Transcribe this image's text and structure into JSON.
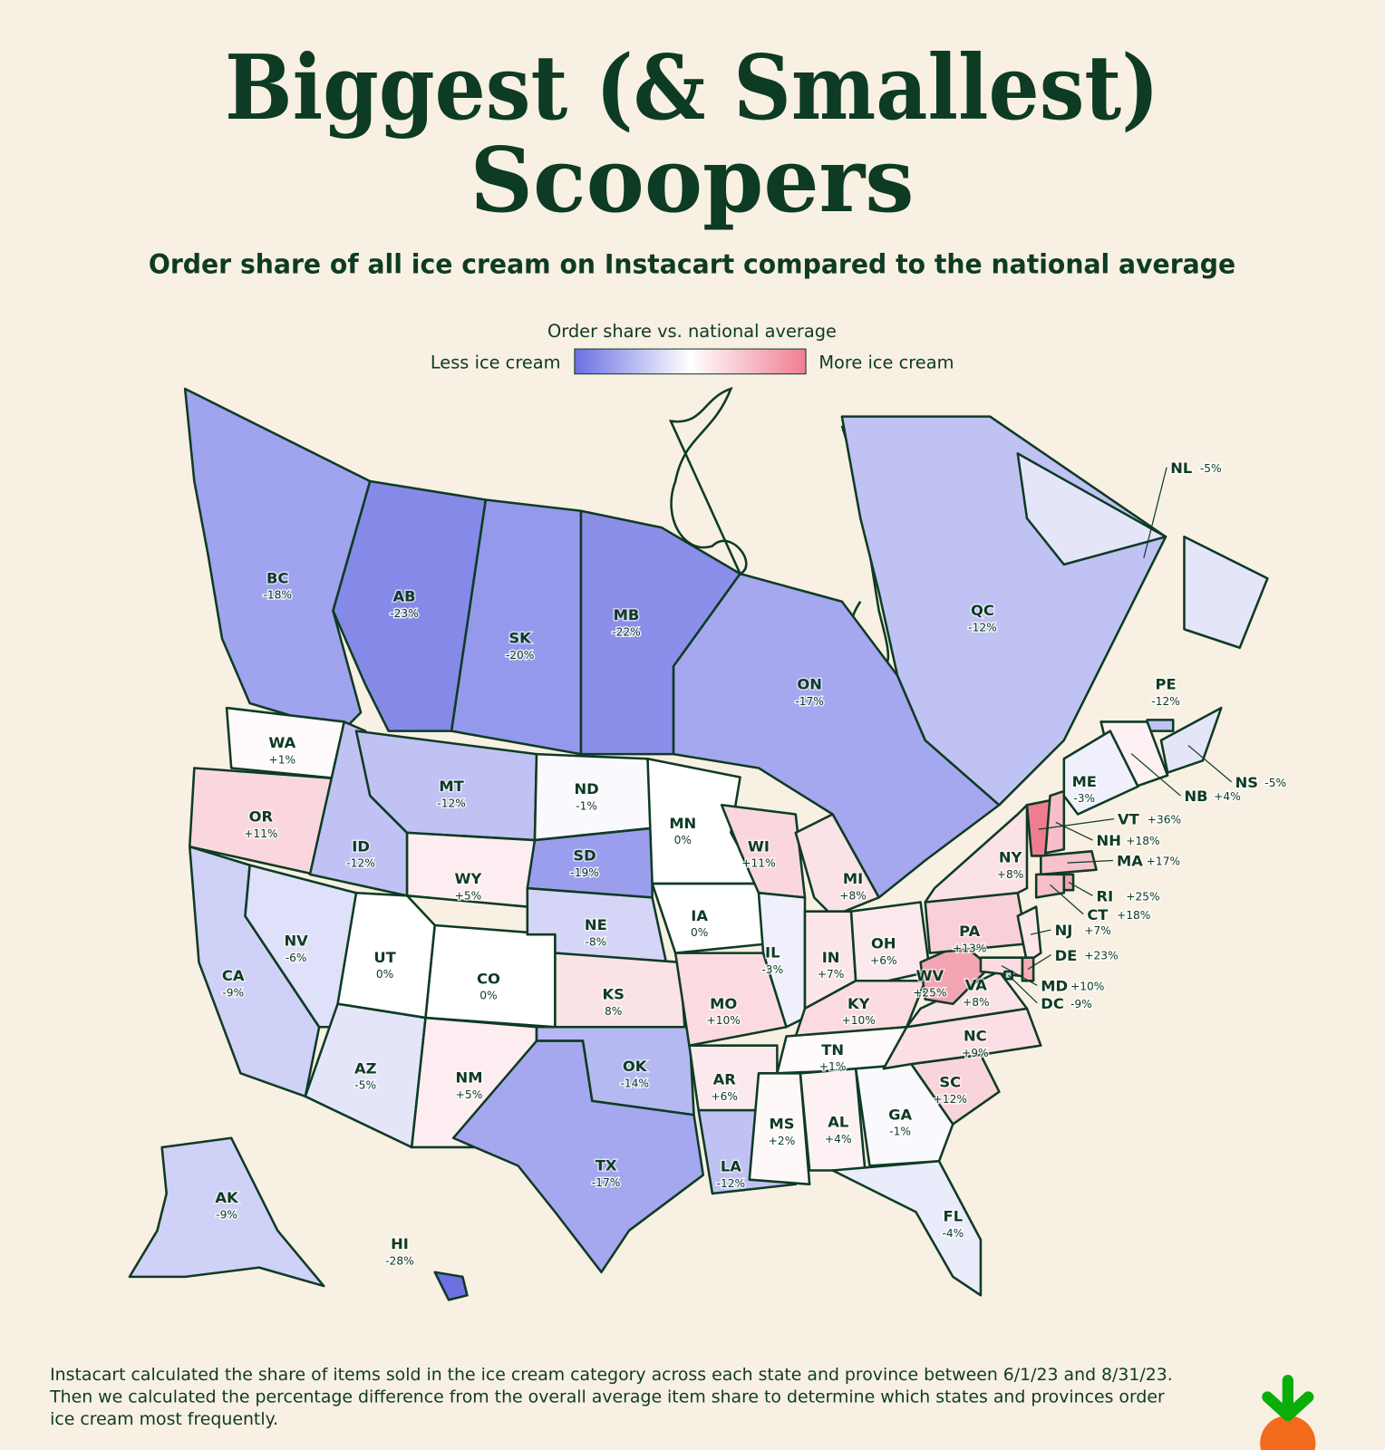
{
  "header": {
    "title": [
      "Biggest (& Smallest)",
      "Scoopers"
    ],
    "subtitle": "Order share of all ice cream on Instacart compared to the national average"
  },
  "legend": {
    "title": "Order share vs. national average",
    "low_label": "Less ice cream",
    "high_label": "More ice cream"
  },
  "regions": [
    {
      "code": "BC",
      "label": "-18%",
      "value": -18
    },
    {
      "code": "AB",
      "label": "-23%",
      "value": -23
    },
    {
      "code": "SK",
      "label": "-20%",
      "value": -20
    },
    {
      "code": "MB",
      "label": "-22%",
      "value": -22
    },
    {
      "code": "ON",
      "label": "-17%",
      "value": -17
    },
    {
      "code": "QC",
      "label": "-12%",
      "value": -12
    },
    {
      "code": "NL",
      "label": "-5%",
      "value": -5
    },
    {
      "code": "PE",
      "label": "-12%",
      "value": -12
    },
    {
      "code": "NS",
      "label": "-5%",
      "value": -5
    },
    {
      "code": "NB",
      "label": "+4%",
      "value": 4
    },
    {
      "code": "WA",
      "label": "+1%",
      "value": 1
    },
    {
      "code": "OR",
      "label": "+11%",
      "value": 11
    },
    {
      "code": "CA",
      "label": "-9%",
      "value": -9
    },
    {
      "code": "NV",
      "label": "-6%",
      "value": -6
    },
    {
      "code": "ID",
      "label": "-12%",
      "value": -12
    },
    {
      "code": "MT",
      "label": "-12%",
      "value": -12
    },
    {
      "code": "WY",
      "label": "+5%",
      "value": 5
    },
    {
      "code": "UT",
      "label": "0%",
      "value": 0
    },
    {
      "code": "CO",
      "label": "0%",
      "value": 0
    },
    {
      "code": "AZ",
      "label": "-5%",
      "value": -5
    },
    {
      "code": "NM",
      "label": "+5%",
      "value": 5
    },
    {
      "code": "ND",
      "label": "-1%",
      "value": -1
    },
    {
      "code": "SD",
      "label": "-19%",
      "value": -19
    },
    {
      "code": "NE",
      "label": "-8%",
      "value": -8
    },
    {
      "code": "KS",
      "label": "8%",
      "value": 8
    },
    {
      "code": "OK",
      "label": "-14%",
      "value": -14
    },
    {
      "code": "TX",
      "label": "-17%",
      "value": -17
    },
    {
      "code": "MN",
      "label": "0%",
      "value": 0
    },
    {
      "code": "IA",
      "label": "0%",
      "value": 0
    },
    {
      "code": "MO",
      "label": "+10%",
      "value": 10
    },
    {
      "code": "AR",
      "label": "+6%",
      "value": 6
    },
    {
      "code": "LA",
      "label": "-12%",
      "value": -12
    },
    {
      "code": "WI",
      "label": "+11%",
      "value": 11
    },
    {
      "code": "IL",
      "label": "-3%",
      "value": -3
    },
    {
      "code": "MI",
      "label": "+8%",
      "value": 8
    },
    {
      "code": "IN",
      "label": "+7%",
      "value": 7
    },
    {
      "code": "OH",
      "label": "+6%",
      "value": 6
    },
    {
      "code": "KY",
      "label": "+10%",
      "value": 10
    },
    {
      "code": "TN",
      "label": "+1%",
      "value": 1
    },
    {
      "code": "MS",
      "label": "+2%",
      "value": 2
    },
    {
      "code": "AL",
      "label": "+4%",
      "value": 4
    },
    {
      "code": "GA",
      "label": "-1%",
      "value": -1
    },
    {
      "code": "FL",
      "label": "-4%",
      "value": -4
    },
    {
      "code": "SC",
      "label": "+12%",
      "value": 12
    },
    {
      "code": "NC",
      "label": "+9%",
      "value": 9
    },
    {
      "code": "VA",
      "label": "+8%",
      "value": 8
    },
    {
      "code": "WV",
      "label": "+25%",
      "value": 25
    },
    {
      "code": "PA",
      "label": "+13%",
      "value": 13
    },
    {
      "code": "NY",
      "label": "+8%",
      "value": 8
    },
    {
      "code": "NJ",
      "label": "+7%",
      "value": 7
    },
    {
      "code": "DE",
      "label": "+23%",
      "value": 23
    },
    {
      "code": "MD",
      "label": "+10%",
      "value": 10
    },
    {
      "code": "DC",
      "label": "-9%",
      "value": -9
    },
    {
      "code": "VT",
      "label": "+36%",
      "value": 36
    },
    {
      "code": "NH",
      "label": "+18%",
      "value": 18
    },
    {
      "code": "ME",
      "label": "-3%",
      "value": -3
    },
    {
      "code": "MA",
      "label": "+17%",
      "value": 17
    },
    {
      "code": "CT",
      "label": "+18%",
      "value": 18
    },
    {
      "code": "RI",
      "label": "+25%",
      "value": 25
    },
    {
      "code": "AK",
      "label": "-9%",
      "value": -9
    },
    {
      "code": "HI",
      "label": "-28%",
      "value": -28
    }
  ],
  "footnote": [
    "Instacart calculated the share of items sold in the ice cream category across each state and province between 6/1/23 and 8/31/23.",
    "Then we calculated the percentage difference from the overall average item share to determine which states and provinces order",
    "ice cream most frequently."
  ]
}
